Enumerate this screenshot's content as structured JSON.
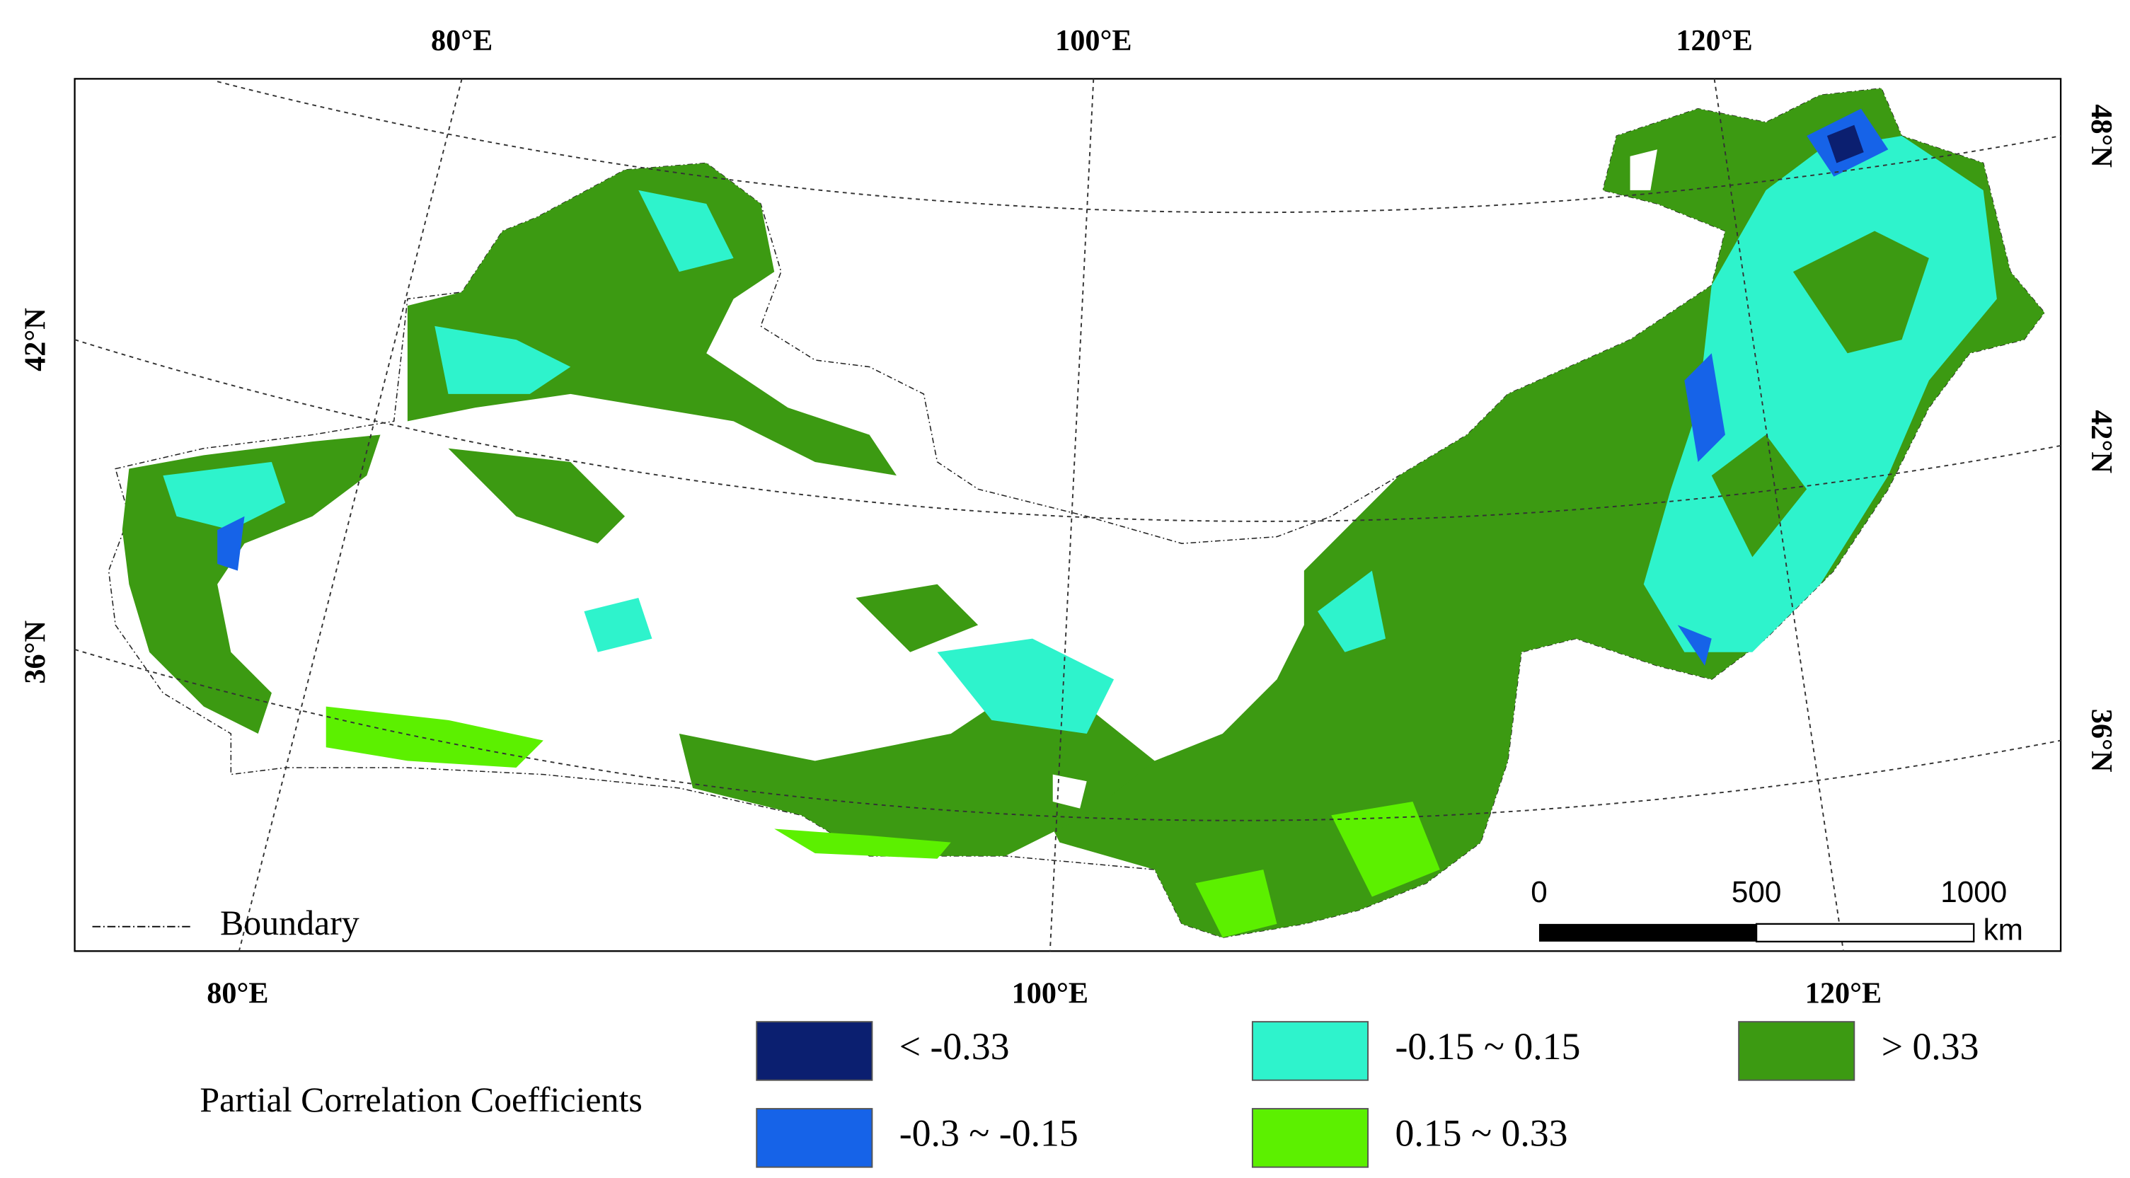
{
  "graticule_labels": {
    "top": [
      "80°E",
      "100°E",
      "120°E"
    ],
    "bottom": [
      "80°E",
      "100°E",
      "120°E"
    ],
    "left": [
      "42°N",
      "36°N"
    ],
    "right": [
      "48°N",
      "42°N",
      "36°N"
    ]
  },
  "boundary_label": "Boundary",
  "scale_bar": {
    "ticks": [
      "0",
      "500",
      "1000"
    ],
    "unit": "km"
  },
  "legend": {
    "title": "Partial Correlation Coefficients",
    "items": [
      {
        "label": "< -0.33",
        "color": "#0b1f70"
      },
      {
        "label": "-0.3 ~ -0.15",
        "color": "#1663e8"
      },
      {
        "label": "-0.15 ~ 0.15",
        "color": "#2ef3cc"
      },
      {
        "label": "0.15 ~ 0.33",
        "color": "#5cf000"
      },
      {
        "label": "> 0.33",
        "color": "#3c9a12"
      }
    ]
  }
}
